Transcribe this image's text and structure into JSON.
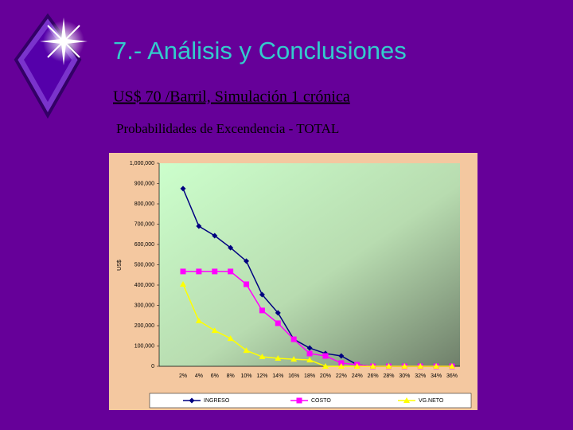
{
  "header": {
    "title": "7.- Análisis y Conclusiones",
    "subtitle": "US$ 70 /Barril, Simulación 1 crónica",
    "caption": "Probabilidades de Excendencia - TOTAL"
  },
  "chart_data": {
    "type": "line",
    "y_label": "US$",
    "categories": [
      "2%",
      "4%",
      "6%",
      "8%",
      "10%",
      "12%",
      "14%",
      "16%",
      "18%",
      "20%",
      "22%",
      "24%",
      "26%",
      "28%",
      "30%",
      "32%",
      "34%",
      "36%"
    ],
    "series": [
      {
        "name": "INGRESO",
        "color": "#000080",
        "marker": "diamond",
        "values": [
          875000,
          690000,
          643000,
          584000,
          518000,
          353000,
          263000,
          133000,
          90000,
          63000,
          51000,
          8000,
          0,
          0,
          0,
          0,
          0,
          0
        ]
      },
      {
        "name": "COSTO",
        "color": "#ff00ff",
        "marker": "square",
        "values": [
          467000,
          467000,
          467000,
          467000,
          404000,
          275000,
          212000,
          133000,
          63000,
          51000,
          16000,
          8000,
          0,
          0,
          0,
          0,
          0,
          0
        ]
      },
      {
        "name": "VG.NETO",
        "color": "#ffff00",
        "marker": "triangle",
        "values": [
          404000,
          224000,
          176000,
          137000,
          78000,
          47000,
          39000,
          35000,
          31000,
          0,
          0,
          0,
          0,
          0,
          0,
          0,
          0,
          0
        ]
      }
    ],
    "ylim": [
      0,
      1000000
    ],
    "yticks": [
      0,
      {
        "value": 100000,
        "label": "100,000"
      },
      {
        "value": 200000,
        "label": "200,000"
      },
      {
        "value": 300000,
        "label": "300,000"
      },
      {
        "value": 400000,
        "label": "400,000"
      },
      {
        "value": 500000,
        "label": "500,000"
      },
      {
        "value": 600000,
        "label": "600,000"
      },
      {
        "value": 700000,
        "label": "700,000"
      },
      {
        "value": 800000,
        "label": "800,000"
      },
      {
        "value": 900000,
        "label": "900,000"
      },
      {
        "value": 1000000,
        "label": "1,000,000"
      }
    ],
    "legend": "bottom"
  }
}
